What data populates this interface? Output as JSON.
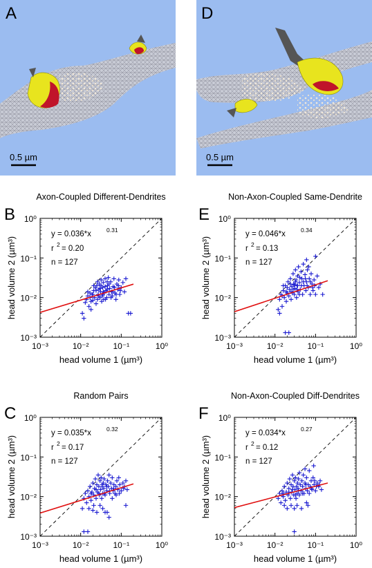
{
  "panels": {
    "A": {
      "letter": "A",
      "scalebar": "0.5 µm"
    },
    "D": {
      "letter": "D",
      "scalebar": "0.5 µm"
    }
  },
  "colors": {
    "background": "#9bbcf0",
    "spine": "#e8e41e",
    "psd": "#c0142a",
    "vesicles": "#f3e9d8",
    "axon_dark": "#555555",
    "points": "#1818d0",
    "fit": "#e01010",
    "diagonal": "#000000"
  },
  "axes_text": {
    "xlabel": "head volume 1 (µm³)",
    "ylabel": "head volume 2 (µm³)",
    "xticks": [
      "10⁻³",
      "10⁻²",
      "10⁻¹",
      "10⁰"
    ],
    "yticks": [
      "10⁻³",
      "10⁻²",
      "10⁻¹",
      "10⁰"
    ]
  },
  "chart_data": [
    {
      "letter": "B",
      "type": "scatter",
      "title": "Axon-Coupled Different-Dendrites",
      "xlabel": "head volume 1 (µm³)",
      "ylabel": "head volume 2 (µm³)",
      "xscale": "log",
      "yscale": "log",
      "xlim": [
        0.001,
        1
      ],
      "ylim": [
        0.001,
        1
      ],
      "fit": {
        "eq": "y = 0.036*x",
        "exp": "0.31",
        "a": 0.036,
        "b": 0.31,
        "x_range": [
          0.001,
          0.2
        ]
      },
      "r2_text": " = 0.20",
      "n_text": "n = 127",
      "r2": 0.2,
      "n": 127,
      "points": [
        [
          0.011,
          0.004
        ],
        [
          0.012,
          0.003
        ],
        [
          0.013,
          0.0075
        ],
        [
          0.014,
          0.009
        ],
        [
          0.015,
          0.011
        ],
        [
          0.016,
          0.006
        ],
        [
          0.017,
          0.013
        ],
        [
          0.018,
          0.008
        ],
        [
          0.019,
          0.012
        ],
        [
          0.02,
          0.0085
        ],
        [
          0.021,
          0.015
        ],
        [
          0.022,
          0.01
        ],
        [
          0.023,
          0.018
        ],
        [
          0.024,
          0.007
        ],
        [
          0.025,
          0.02
        ],
        [
          0.026,
          0.009
        ],
        [
          0.027,
          0.012
        ],
        [
          0.028,
          0.016
        ],
        [
          0.029,
          0.022
        ],
        [
          0.03,
          0.01
        ],
        [
          0.031,
          0.014
        ],
        [
          0.032,
          0.028
        ],
        [
          0.033,
          0.008
        ],
        [
          0.034,
          0.011
        ],
        [
          0.035,
          0.018
        ],
        [
          0.036,
          0.024
        ],
        [
          0.037,
          0.009
        ],
        [
          0.038,
          0.013
        ],
        [
          0.04,
          0.03
        ],
        [
          0.042,
          0.015
        ],
        [
          0.044,
          0.01
        ],
        [
          0.046,
          0.02
        ],
        [
          0.048,
          0.032
        ],
        [
          0.05,
          0.012
        ],
        [
          0.052,
          0.017
        ],
        [
          0.055,
          0.025
        ],
        [
          0.058,
          0.014
        ],
        [
          0.06,
          0.011
        ],
        [
          0.063,
          0.019
        ],
        [
          0.066,
          0.03
        ],
        [
          0.07,
          0.013
        ],
        [
          0.074,
          0.009
        ],
        [
          0.078,
          0.022
        ],
        [
          0.082,
          0.016
        ],
        [
          0.087,
          0.028
        ],
        [
          0.092,
          0.012
        ],
        [
          0.1,
          0.018
        ],
        [
          0.11,
          0.024
        ],
        [
          0.12,
          0.014
        ],
        [
          0.13,
          0.03
        ],
        [
          0.15,
          0.004
        ],
        [
          0.17,
          0.004
        ],
        [
          0.018,
          0.005
        ],
        [
          0.02,
          0.012
        ],
        [
          0.024,
          0.015
        ],
        [
          0.028,
          0.011
        ],
        [
          0.032,
          0.02
        ],
        [
          0.036,
          0.014
        ],
        [
          0.041,
          0.009
        ],
        [
          0.045,
          0.016
        ],
        [
          0.05,
          0.022
        ],
        [
          0.056,
          0.01
        ],
        [
          0.062,
          0.014
        ],
        [
          0.068,
          0.018
        ],
        [
          0.075,
          0.012
        ],
        [
          0.085,
          0.02
        ],
        [
          0.095,
          0.015
        ],
        [
          0.015,
          0.014
        ],
        [
          0.017,
          0.01
        ],
        [
          0.021,
          0.02
        ],
        [
          0.026,
          0.025
        ],
        [
          0.03,
          0.017
        ],
        [
          0.035,
          0.012
        ],
        [
          0.04,
          0.019
        ],
        [
          0.045,
          0.025
        ]
      ]
    },
    {
      "letter": "E",
      "type": "scatter",
      "title": "Non-Axon-Coupled Same-Dendrite",
      "xlabel": "head volume 1 (µm³)",
      "ylabel": "head volume 2 (µm³)",
      "xscale": "log",
      "yscale": "log",
      "xlim": [
        0.001,
        1
      ],
      "ylim": [
        0.001,
        1
      ],
      "fit": {
        "eq": "y = 0.046*x",
        "exp": "0.34",
        "a": 0.046,
        "b": 0.34,
        "x_range": [
          0.001,
          0.2
        ]
      },
      "r2_text": " = 0.13",
      "n_text": "n = 127",
      "r2": 0.13,
      "n": 127,
      "points": [
        [
          0.012,
          0.005
        ],
        [
          0.013,
          0.009
        ],
        [
          0.014,
          0.012
        ],
        [
          0.015,
          0.006
        ],
        [
          0.016,
          0.015
        ],
        [
          0.017,
          0.01
        ],
        [
          0.018,
          0.02
        ],
        [
          0.019,
          0.008
        ],
        [
          0.02,
          0.013
        ],
        [
          0.021,
          0.025
        ],
        [
          0.022,
          0.011
        ],
        [
          0.023,
          0.016
        ],
        [
          0.024,
          0.03
        ],
        [
          0.025,
          0.009
        ],
        [
          0.026,
          0.019
        ],
        [
          0.027,
          0.013
        ],
        [
          0.028,
          0.04
        ],
        [
          0.029,
          0.022
        ],
        [
          0.03,
          0.012
        ],
        [
          0.031,
          0.017
        ],
        [
          0.032,
          0.05
        ],
        [
          0.033,
          0.028
        ],
        [
          0.034,
          0.01
        ],
        [
          0.035,
          0.02
        ],
        [
          0.036,
          0.035
        ],
        [
          0.037,
          0.014
        ],
        [
          0.038,
          0.06
        ],
        [
          0.04,
          0.024
        ],
        [
          0.042,
          0.016
        ],
        [
          0.044,
          0.045
        ],
        [
          0.046,
          0.03
        ],
        [
          0.048,
          0.012
        ],
        [
          0.05,
          0.07
        ],
        [
          0.052,
          0.02
        ],
        [
          0.055,
          0.038
        ],
        [
          0.058,
          0.015
        ],
        [
          0.06,
          0.025
        ],
        [
          0.063,
          0.05
        ],
        [
          0.066,
          0.018
        ],
        [
          0.07,
          0.03
        ],
        [
          0.074,
          0.012
        ],
        [
          0.078,
          0.04
        ],
        [
          0.082,
          0.022
        ],
        [
          0.087,
          0.015
        ],
        [
          0.092,
          0.028
        ],
        [
          0.1,
          0.012
        ],
        [
          0.11,
          0.035
        ],
        [
          0.12,
          0.018
        ],
        [
          0.13,
          0.022
        ],
        [
          0.15,
          0.012
        ],
        [
          0.1,
          0.11
        ],
        [
          0.018,
          0.0013
        ],
        [
          0.022,
          0.0013
        ],
        [
          0.013,
          0.004
        ],
        [
          0.016,
          0.02
        ],
        [
          0.02,
          0.018
        ],
        [
          0.024,
          0.022
        ],
        [
          0.028,
          0.016
        ],
        [
          0.032,
          0.025
        ],
        [
          0.036,
          0.02
        ],
        [
          0.041,
          0.032
        ],
        [
          0.045,
          0.02
        ],
        [
          0.05,
          0.025
        ],
        [
          0.056,
          0.03
        ],
        [
          0.062,
          0.02
        ],
        [
          0.068,
          0.06
        ],
        [
          0.075,
          0.025
        ],
        [
          0.085,
          0.018
        ],
        [
          0.095,
          0.02
        ],
        [
          0.015,
          0.011
        ],
        [
          0.019,
          0.014
        ],
        [
          0.025,
          0.014
        ],
        [
          0.03,
          0.021
        ],
        [
          0.035,
          0.016
        ],
        [
          0.04,
          0.012
        ],
        [
          0.06,
          0.09
        ]
      ]
    },
    {
      "letter": "C",
      "type": "scatter",
      "title": "Random Pairs",
      "xlabel": "head volume 1 (µm³)",
      "ylabel": "head volume 2 (µm³)",
      "xscale": "log",
      "yscale": "log",
      "xlim": [
        0.001,
        1
      ],
      "ylim": [
        0.001,
        1
      ],
      "fit": {
        "eq": "y = 0.035*x",
        "exp": "0.32",
        "a": 0.035,
        "b": 0.32,
        "x_range": [
          0.001,
          0.2
        ]
      },
      "r2_text": " = 0.17",
      "n_text": "n = 127",
      "r2": 0.17,
      "n": 127,
      "points": [
        [
          0.011,
          0.005
        ],
        [
          0.012,
          0.009
        ],
        [
          0.013,
          0.012
        ],
        [
          0.014,
          0.007
        ],
        [
          0.015,
          0.014
        ],
        [
          0.016,
          0.01
        ],
        [
          0.017,
          0.018
        ],
        [
          0.018,
          0.008
        ],
        [
          0.019,
          0.013
        ],
        [
          0.02,
          0.022
        ],
        [
          0.021,
          0.011
        ],
        [
          0.022,
          0.016
        ],
        [
          0.023,
          0.028
        ],
        [
          0.024,
          0.009
        ],
        [
          0.025,
          0.02
        ],
        [
          0.026,
          0.013
        ],
        [
          0.027,
          0.035
        ],
        [
          0.028,
          0.018
        ],
        [
          0.029,
          0.011
        ],
        [
          0.03,
          0.025
        ],
        [
          0.031,
          0.015
        ],
        [
          0.032,
          0.03
        ],
        [
          0.033,
          0.009
        ],
        [
          0.034,
          0.018
        ],
        [
          0.035,
          0.012
        ],
        [
          0.036,
          0.022
        ],
        [
          0.037,
          0.016
        ],
        [
          0.038,
          0.028
        ],
        [
          0.04,
          0.011
        ],
        [
          0.042,
          0.02
        ],
        [
          0.044,
          0.014
        ],
        [
          0.046,
          0.025
        ],
        [
          0.048,
          0.018
        ],
        [
          0.05,
          0.035
        ],
        [
          0.052,
          0.012
        ],
        [
          0.055,
          0.022
        ],
        [
          0.058,
          0.016
        ],
        [
          0.06,
          0.03
        ],
        [
          0.063,
          0.014
        ],
        [
          0.066,
          0.02
        ],
        [
          0.07,
          0.012
        ],
        [
          0.074,
          0.018
        ],
        [
          0.078,
          0.025
        ],
        [
          0.082,
          0.015
        ],
        [
          0.087,
          0.03
        ],
        [
          0.092,
          0.02
        ],
        [
          0.1,
          0.014
        ],
        [
          0.11,
          0.022
        ],
        [
          0.12,
          0.018
        ],
        [
          0.13,
          0.025
        ],
        [
          0.14,
          0.015
        ],
        [
          0.02,
          0.0045
        ],
        [
          0.025,
          0.004
        ],
        [
          0.03,
          0.006
        ],
        [
          0.04,
          0.004
        ],
        [
          0.012,
          0.0013
        ],
        [
          0.015,
          0.0013
        ],
        [
          0.05,
          0.003
        ],
        [
          0.045,
          0.004
        ],
        [
          0.13,
          0.006
        ],
        [
          0.016,
          0.005
        ],
        [
          0.021,
          0.006
        ],
        [
          0.035,
          0.005
        ],
        [
          0.06,
          0.009
        ],
        [
          0.075,
          0.011
        ],
        [
          0.09,
          0.012
        ],
        [
          0.115,
          0.016
        ],
        [
          0.018,
          0.012
        ],
        [
          0.024,
          0.015
        ],
        [
          0.028,
          0.012
        ],
        [
          0.034,
          0.02
        ],
        [
          0.038,
          0.012
        ],
        [
          0.044,
          0.018
        ],
        [
          0.052,
          0.014
        ],
        [
          0.065,
          0.016
        ]
      ]
    },
    {
      "letter": "F",
      "type": "scatter",
      "title": "Non-Axon-Coupled Diff-Dendrites",
      "xlabel": "head volume 1 (µm³)",
      "ylabel": "head volume 2 (µm³)",
      "xscale": "log",
      "yscale": "log",
      "xlim": [
        0.001,
        1
      ],
      "ylim": [
        0.001,
        1
      ],
      "fit": {
        "eq": "y = 0.034*x",
        "exp": "0.27",
        "a": 0.034,
        "b": 0.27,
        "x_range": [
          0.001,
          0.2
        ]
      },
      "r2_text": " = 0.12",
      "n_text": "n = 127",
      "r2": 0.12,
      "n": 127,
      "points": [
        [
          0.012,
          0.009
        ],
        [
          0.013,
          0.012
        ],
        [
          0.014,
          0.007
        ],
        [
          0.015,
          0.014
        ],
        [
          0.016,
          0.01
        ],
        [
          0.017,
          0.018
        ],
        [
          0.018,
          0.008
        ],
        [
          0.019,
          0.013
        ],
        [
          0.02,
          0.022
        ],
        [
          0.021,
          0.011
        ],
        [
          0.022,
          0.016
        ],
        [
          0.023,
          0.028
        ],
        [
          0.024,
          0.009
        ],
        [
          0.025,
          0.02
        ],
        [
          0.026,
          0.013
        ],
        [
          0.027,
          0.035
        ],
        [
          0.028,
          0.018
        ],
        [
          0.029,
          0.011
        ],
        [
          0.03,
          0.025
        ],
        [
          0.031,
          0.015
        ],
        [
          0.032,
          0.03
        ],
        [
          0.033,
          0.009
        ],
        [
          0.034,
          0.018
        ],
        [
          0.035,
          0.012
        ],
        [
          0.036,
          0.022
        ],
        [
          0.037,
          0.016
        ],
        [
          0.038,
          0.028
        ],
        [
          0.04,
          0.011
        ],
        [
          0.042,
          0.02
        ],
        [
          0.044,
          0.014
        ],
        [
          0.046,
          0.025
        ],
        [
          0.048,
          0.018
        ],
        [
          0.05,
          0.035
        ],
        [
          0.052,
          0.012
        ],
        [
          0.055,
          0.022
        ],
        [
          0.058,
          0.016
        ],
        [
          0.06,
          0.03
        ],
        [
          0.063,
          0.014
        ],
        [
          0.066,
          0.02
        ],
        [
          0.07,
          0.012
        ],
        [
          0.074,
          0.018
        ],
        [
          0.078,
          0.025
        ],
        [
          0.082,
          0.015
        ],
        [
          0.087,
          0.03
        ],
        [
          0.092,
          0.02
        ],
        [
          0.1,
          0.014
        ],
        [
          0.11,
          0.022
        ],
        [
          0.12,
          0.018
        ],
        [
          0.13,
          0.025
        ],
        [
          0.14,
          0.015
        ],
        [
          0.017,
          0.006
        ],
        [
          0.02,
          0.005
        ],
        [
          0.025,
          0.006
        ],
        [
          0.03,
          0.005
        ],
        [
          0.035,
          0.006
        ],
        [
          0.045,
          0.005
        ],
        [
          0.03,
          0.0013
        ],
        [
          0.06,
          0.007
        ],
        [
          0.04,
          0.04
        ],
        [
          0.09,
          0.06
        ],
        [
          0.07,
          0.045
        ],
        [
          0.055,
          0.05
        ],
        [
          0.065,
          0.006
        ],
        [
          0.016,
          0.012
        ],
        [
          0.022,
          0.013
        ],
        [
          0.027,
          0.015
        ],
        [
          0.032,
          0.011
        ],
        [
          0.038,
          0.014
        ],
        [
          0.048,
          0.012
        ],
        [
          0.058,
          0.02
        ],
        [
          0.08,
          0.016
        ],
        [
          0.095,
          0.025
        ],
        [
          0.105,
          0.018
        ],
        [
          0.125,
          0.02
        ],
        [
          0.015,
          0.011
        ]
      ]
    }
  ]
}
